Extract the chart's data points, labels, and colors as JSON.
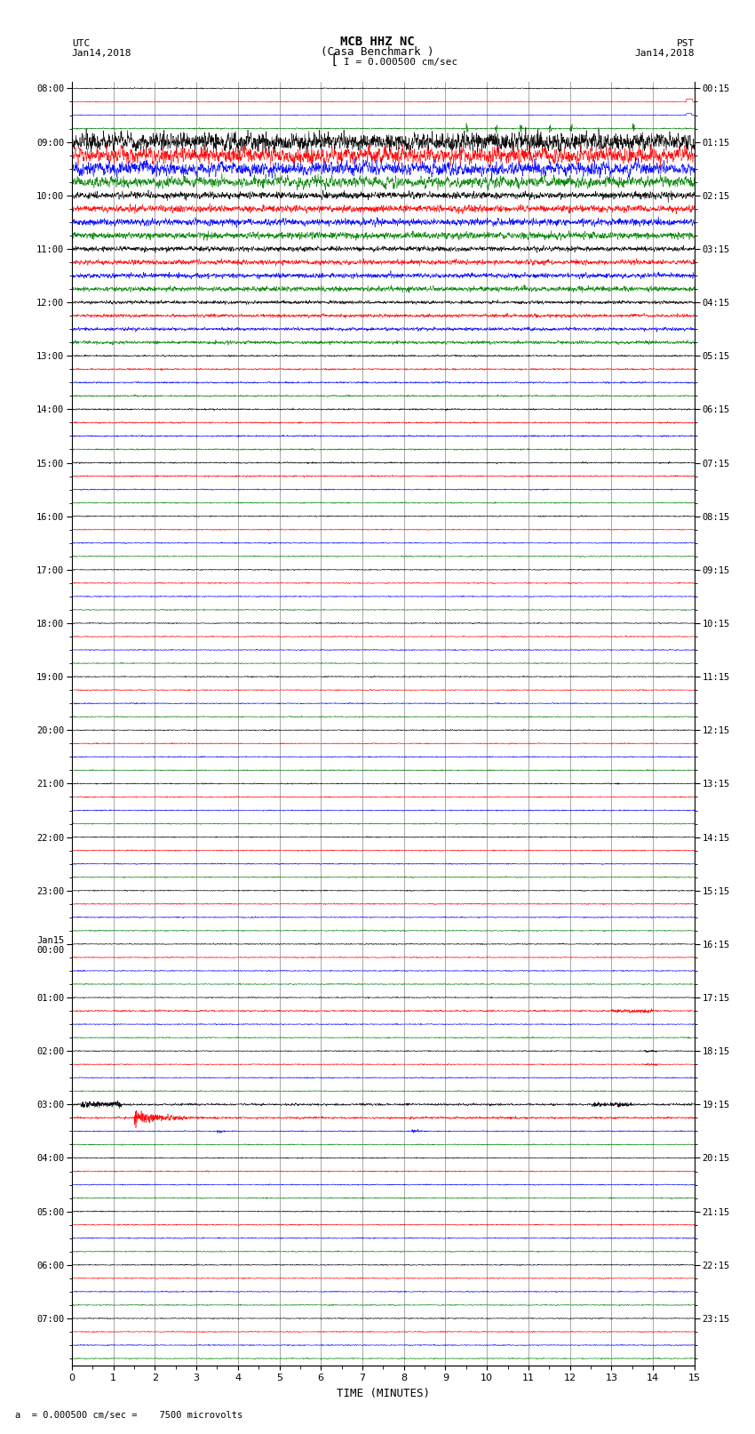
{
  "title_line1": "MCB HHZ NC",
  "title_line2": "(Casa Benchmark )",
  "scale_label": "I = 0.000500 cm/sec",
  "left_date": "Jan14,2018",
  "right_date": "Jan14,2018",
  "left_tz": "UTC",
  "right_tz": "PST",
  "xlabel": "TIME (MINUTES)",
  "bottom_note": "a  = 0.000500 cm/sec =    7500 microvolts",
  "xmin": 0,
  "xmax": 15,
  "num_traces": 96,
  "trace_colors": [
    "black",
    "red",
    "blue",
    "green"
  ],
  "background_color": "#ffffff",
  "left_times": [
    "08:00",
    "",
    "",
    "",
    "09:00",
    "",
    "",
    "",
    "10:00",
    "",
    "",
    "",
    "11:00",
    "",
    "",
    "",
    "12:00",
    "",
    "",
    "",
    "13:00",
    "",
    "",
    "",
    "14:00",
    "",
    "",
    "",
    "15:00",
    "",
    "",
    "",
    "16:00",
    "",
    "",
    "",
    "17:00",
    "",
    "",
    "",
    "18:00",
    "",
    "",
    "",
    "19:00",
    "",
    "",
    "",
    "20:00",
    "",
    "",
    "",
    "21:00",
    "",
    "",
    "",
    "22:00",
    "",
    "",
    "",
    "23:00",
    "",
    "",
    "",
    "Jan15\n00:00",
    "",
    "",
    "",
    "01:00",
    "",
    "",
    "",
    "02:00",
    "",
    "",
    "",
    "03:00",
    "",
    "",
    "",
    "04:00",
    "",
    "",
    "",
    "05:00",
    "",
    "",
    "",
    "06:00",
    "",
    "",
    "",
    "07:00",
    "",
    "",
    ""
  ],
  "right_times": [
    "00:15",
    "",
    "",
    "",
    "01:15",
    "",
    "",
    "",
    "02:15",
    "",
    "",
    "",
    "03:15",
    "",
    "",
    "",
    "04:15",
    "",
    "",
    "",
    "05:15",
    "",
    "",
    "",
    "06:15",
    "",
    "",
    "",
    "07:15",
    "",
    "",
    "",
    "08:15",
    "",
    "",
    "",
    "09:15",
    "",
    "",
    "",
    "10:15",
    "",
    "",
    "",
    "11:15",
    "",
    "",
    "",
    "12:15",
    "",
    "",
    "",
    "13:15",
    "",
    "",
    "",
    "14:15",
    "",
    "",
    "",
    "15:15",
    "",
    "",
    "",
    "16:15",
    "",
    "",
    "",
    "17:15",
    "",
    "",
    "",
    "18:15",
    "",
    "",
    "",
    "19:15",
    "",
    "",
    "",
    "20:15",
    "",
    "",
    "",
    "21:15",
    "",
    "",
    "",
    "22:15",
    "",
    "",
    "",
    "23:15",
    "",
    "",
    ""
  ]
}
